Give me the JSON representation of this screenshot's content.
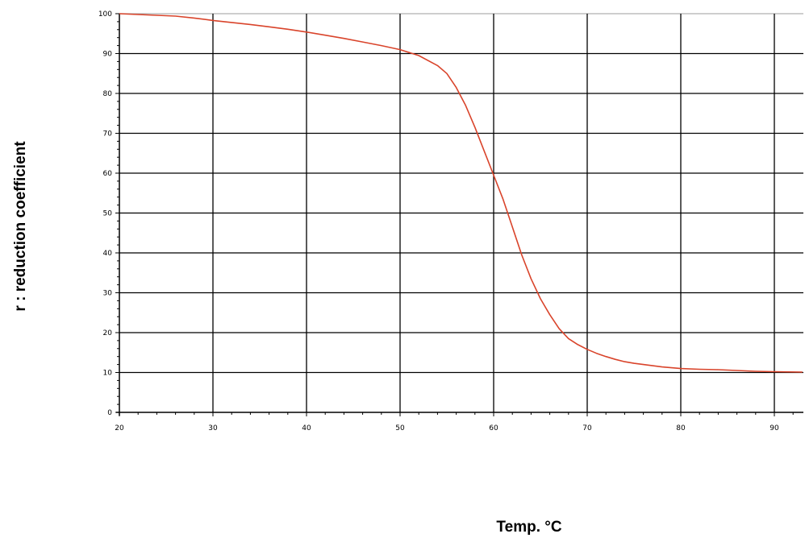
{
  "chart_data": {
    "type": "line",
    "xlabel": "Temp. °C",
    "ylabel": "r : reduction coefficient",
    "xlim": [
      20,
      93
    ],
    "ylim": [
      0,
      100
    ],
    "xticks": [
      20,
      30,
      40,
      50,
      60,
      70,
      80,
      90
    ],
    "yticks": [
      0,
      10,
      20,
      30,
      40,
      50,
      60,
      70,
      80,
      90,
      100
    ],
    "grid": true,
    "line_color": "#d9442b",
    "series": [
      {
        "x": [
          20,
          22,
          24,
          26,
          28,
          30,
          32,
          34,
          36,
          38,
          40,
          42,
          44,
          46,
          48,
          50,
          52,
          54,
          55,
          56,
          57,
          58,
          59,
          60,
          61,
          62,
          63,
          64,
          65,
          66,
          67,
          68,
          69,
          70,
          71,
          72,
          73,
          74,
          75,
          76,
          78,
          80,
          82,
          84,
          86,
          88,
          90,
          93
        ],
        "y": [
          100,
          99.8,
          99.6,
          99.4,
          98.9,
          98.3,
          97.8,
          97.3,
          96.7,
          96.1,
          95.4,
          94.6,
          93.8,
          92.9,
          92.0,
          91.0,
          89.5,
          87.0,
          85.0,
          81.5,
          77.0,
          71.5,
          65.5,
          59.5,
          53.5,
          46.5,
          39.5,
          33.5,
          28.5,
          24.5,
          21.0,
          18.5,
          17.0,
          15.8,
          14.8,
          14.0,
          13.3,
          12.7,
          12.3,
          12.0,
          11.4,
          11.0,
          10.8,
          10.7,
          10.5,
          10.3,
          10.2,
          10.1
        ]
      }
    ]
  }
}
